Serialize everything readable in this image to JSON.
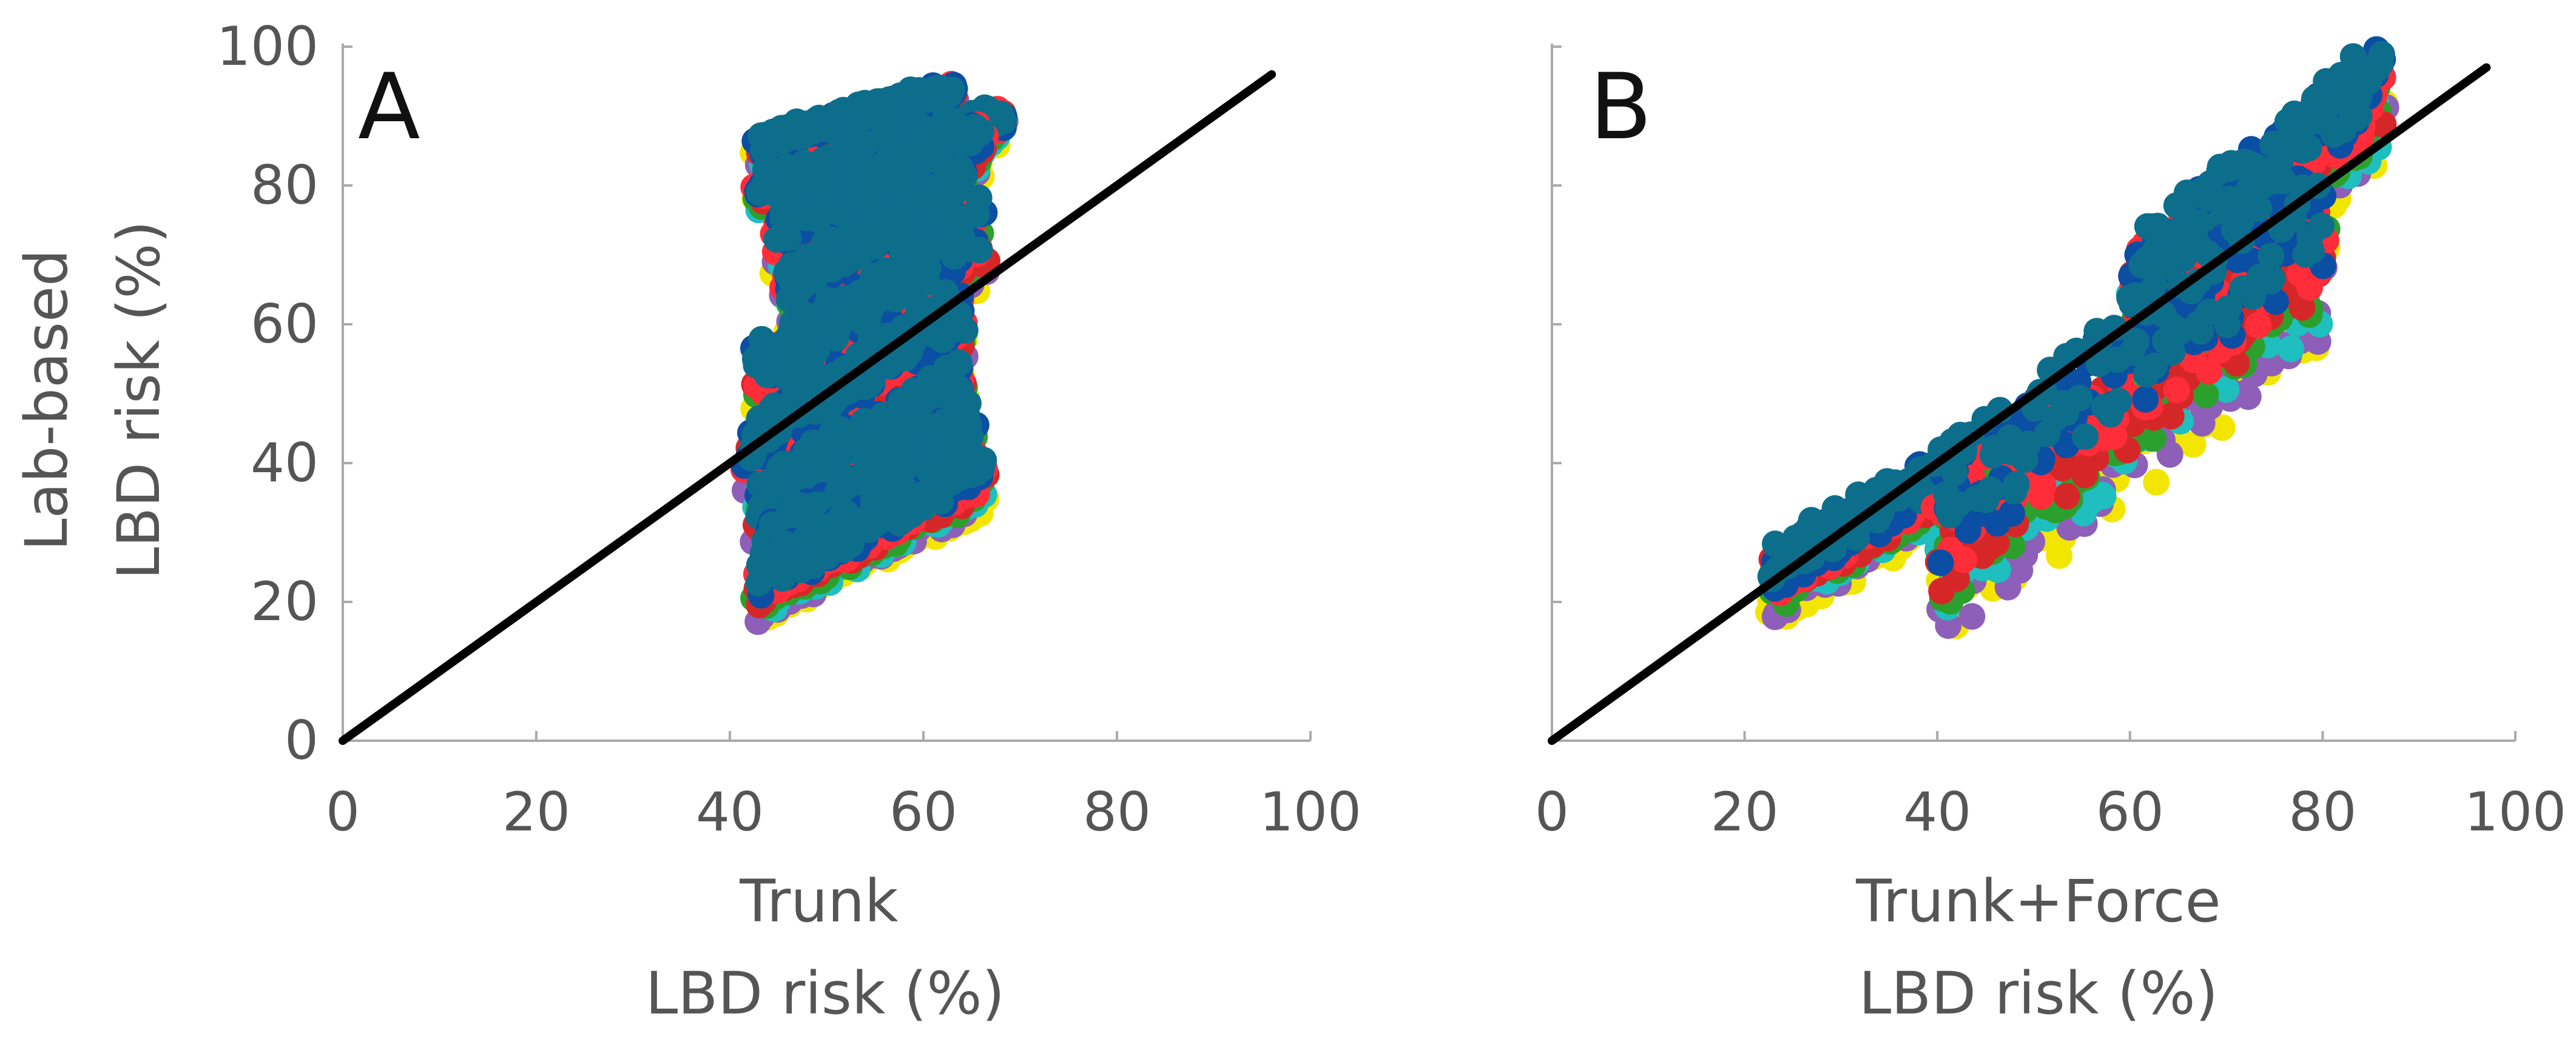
{
  "figure_ylabel": {
    "line1": "Lab-based",
    "line2": "LBD risk (%)"
  },
  "chart_data": [
    {
      "panel": "A",
      "type": "scatter",
      "panel_label": "A",
      "xlabel": {
        "line1": "Trunk",
        "line2": "LBD risk (%)"
      },
      "ylabel": "Lab-based LBD risk (%)",
      "xlim": [
        0,
        100
      ],
      "ylim": [
        0,
        100
      ],
      "xticks": [
        "0",
        "20",
        "40",
        "60",
        "80",
        "100"
      ],
      "yticks": [
        "0",
        "20",
        "40",
        "60",
        "80",
        "100"
      ],
      "identity_line": {
        "x": [
          0,
          96
        ],
        "y": [
          0,
          96
        ]
      },
      "colors": [
        "#f2e600",
        "#8e5fb8",
        "#1fbfbf",
        "#2ca02c",
        "#d62728",
        "#ff2d3a",
        "#0a4fa3",
        "#0d6e8c"
      ],
      "clusters": [
        {
          "x": [
            43,
            63
          ],
          "y": [
            85,
            93
          ]
        },
        {
          "x": [
            43,
            68
          ],
          "y": [
            79,
            89
          ]
        },
        {
          "x": [
            45,
            66
          ],
          "y": [
            72,
            86
          ]
        },
        {
          "x": [
            46,
            64
          ],
          "y": [
            64,
            79
          ]
        },
        {
          "x": [
            43,
            66
          ],
          "y": [
            51,
            72
          ]
        },
        {
          "x": [
            42,
            64
          ],
          "y": [
            41,
            60
          ]
        },
        {
          "x": [
            43,
            64
          ],
          "y": [
            33,
            50
          ]
        },
        {
          "x": [
            44,
            65
          ],
          "y": [
            27,
            44
          ]
        },
        {
          "x": [
            43,
            66
          ],
          "y": [
            22,
            38
          ]
        }
      ]
    },
    {
      "panel": "B",
      "type": "scatter",
      "panel_label": "B",
      "xlabel": {
        "line1": "Trunk+Force",
        "line2": "LBD risk (%)"
      },
      "ylabel": "Lab-based LBD risk (%)",
      "xlim": [
        0,
        100
      ],
      "ylim": [
        0,
        100
      ],
      "xticks": [
        "0",
        "20",
        "40",
        "60",
        "80",
        "100"
      ],
      "yticks": [
        "0",
        "20",
        "40",
        "60",
        "80",
        "100"
      ],
      "identity_line": {
        "x": [
          0,
          97
        ],
        "y": [
          0,
          97
        ]
      },
      "colors": [
        "#f2e600",
        "#8e5fb8",
        "#1fbfbf",
        "#2ca02c",
        "#d62728",
        "#ff2d3a",
        "#0a4fa3",
        "#0d6e8c"
      ],
      "clusters": [
        {
          "x": [
            60,
            86
          ],
          "y": [
            63,
            93
          ]
        },
        {
          "x": [
            23,
            46
          ],
          "y": [
            23,
            41
          ]
        },
        {
          "x": [
            40,
            80
          ],
          "y": [
            28,
            72
          ]
        }
      ]
    }
  ]
}
